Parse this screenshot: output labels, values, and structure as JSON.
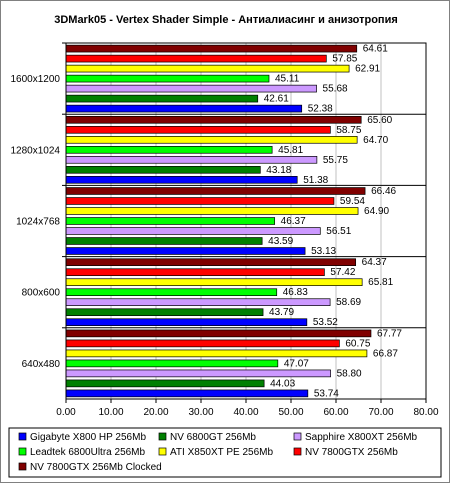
{
  "chart_data": {
    "type": "bar",
    "orientation": "horizontal",
    "title": "3DMark05 - Vertex Shader Simple - Антиалиасинг и анизотропия",
    "xlabel": "",
    "ylabel": "",
    "xlim": [
      0,
      80
    ],
    "x_ticks": [
      "0.00",
      "10.00",
      "20.00",
      "30.00",
      "40.00",
      "50.00",
      "60.00",
      "70.00",
      "80.00"
    ],
    "grid": "vertical",
    "legend_position": "bottom",
    "categories": [
      "1600x1200",
      "1280x1024",
      "1024x768",
      "800x600",
      "640x480"
    ],
    "series": [
      {
        "name": "NV 7800GTX 256Mb Clocked",
        "color": "#800000",
        "values": [
          64.61,
          65.6,
          66.46,
          64.37,
          67.77
        ]
      },
      {
        "name": "NV 7800GTX 256Mb",
        "color": "#ff0000",
        "values": [
          57.85,
          58.75,
          59.54,
          57.42,
          60.75
        ]
      },
      {
        "name": "ATI X850XT PE 256Mb",
        "color": "#ffff00",
        "values": [
          62.91,
          64.7,
          64.9,
          65.81,
          66.87
        ]
      },
      {
        "name": "Leadtek 6800Ultra 256Mb",
        "color": "#00ff00",
        "values": [
          45.11,
          45.81,
          46.37,
          46.83,
          47.07
        ]
      },
      {
        "name": "Sapphire X800XT 256Mb",
        "color": "#cc99ff",
        "values": [
          55.68,
          55.75,
          56.51,
          58.69,
          58.8
        ]
      },
      {
        "name": "NV 6800GT 256Mb",
        "color": "#008000",
        "values": [
          42.61,
          43.18,
          43.59,
          43.79,
          44.03
        ]
      },
      {
        "name": "Gigabyte X800 HP 256Mb",
        "color": "#0000ff",
        "values": [
          52.38,
          51.38,
          53.13,
          53.52,
          53.74
        ]
      }
    ],
    "legend_order": [
      6,
      5,
      4,
      3,
      2,
      1,
      0
    ]
  }
}
